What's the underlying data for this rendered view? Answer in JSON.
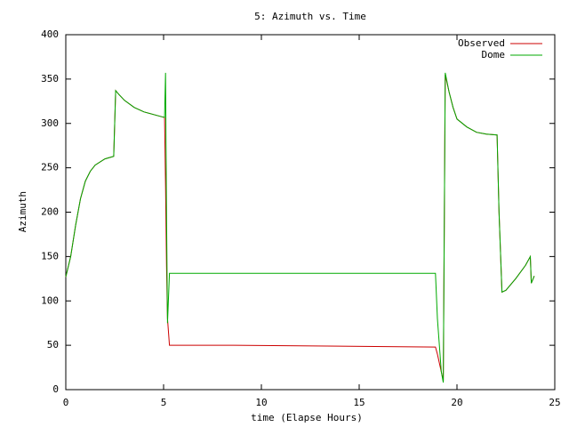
{
  "chart_data": {
    "type": "line",
    "title": "5: Azimuth vs. Time",
    "xlabel": "time (Elapse Hours)",
    "ylabel": "Azimuth",
    "x": [
      0,
      0.25,
      0.5,
      0.75,
      1,
      1.25,
      1.5,
      2,
      2.45,
      2.55,
      2.7,
      3,
      3.5,
      4,
      4.5,
      5,
      5.05,
      5.1,
      5.15,
      5.2,
      5.3,
      8.6,
      18.9,
      19.0,
      19.1,
      19.2,
      19.3,
      19.4,
      19.6,
      19.8,
      20,
      20.5,
      21,
      21.5,
      22.05,
      22.15,
      22.3,
      22.5,
      23,
      23.5,
      23.75,
      23.8,
      23.95
    ],
    "series": [
      {
        "name": "Observed",
        "color": "#cc0000",
        "values": [
          127,
          150,
          185,
          215,
          235,
          246,
          253,
          260,
          263,
          337,
          333,
          326,
          318,
          313,
          310,
          307,
          307,
          230,
          140,
          80,
          50,
          50,
          48,
          40,
          30,
          20,
          10,
          355,
          335,
          318,
          305,
          296,
          290,
          288,
          287,
          200,
          110,
          112,
          125,
          140,
          150,
          120,
          128
        ]
      },
      {
        "name": "Dome",
        "color": "#00aa00",
        "values": [
          127,
          150,
          185,
          215,
          235,
          246,
          253,
          260,
          263,
          337,
          333,
          326,
          318,
          313,
          310,
          307,
          307,
          357,
          200,
          75,
          131,
          131,
          131,
          80,
          50,
          20,
          8,
          357,
          335,
          318,
          305,
          296,
          290,
          288,
          287,
          200,
          110,
          112,
          125,
          140,
          150,
          120,
          128
        ]
      }
    ],
    "xlim": [
      0,
      25
    ],
    "xticks": [
      0,
      5,
      10,
      15,
      20,
      25
    ],
    "ylim": [
      0,
      400
    ],
    "yticks": [
      0,
      50,
      100,
      150,
      200,
      250,
      300,
      350,
      400
    ],
    "legend": "top-right"
  }
}
